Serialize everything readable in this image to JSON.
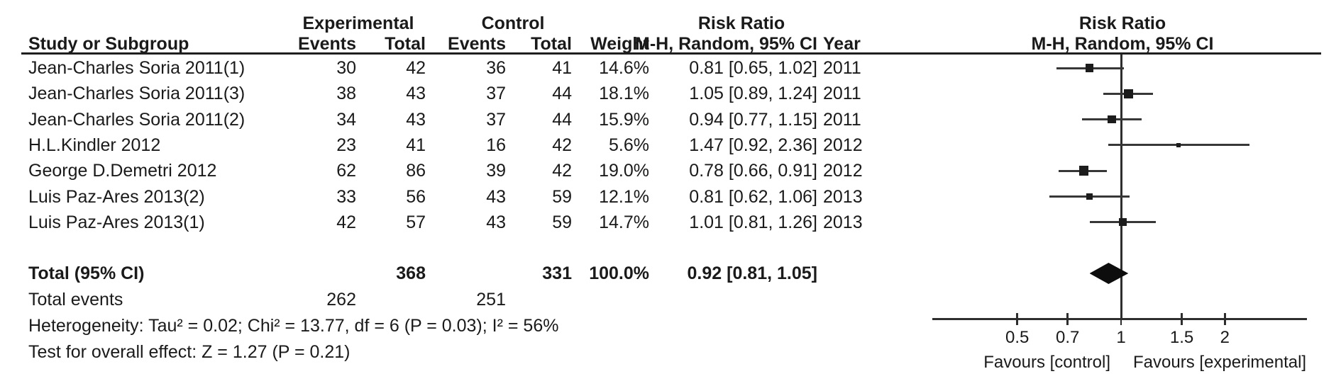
{
  "table": {
    "group_headers": {
      "experimental": "Experimental",
      "control": "Control",
      "risk_ratio_left": "Risk Ratio",
      "risk_ratio_right": "Risk Ratio"
    },
    "columns": {
      "study": "Study or Subgroup",
      "events": "Events",
      "total": "Total",
      "events2": "Events",
      "total2": "Total",
      "weight": "Weight",
      "mh_ci": "M-H, Random, 95% CI",
      "year": "Year",
      "mh_ci_plot": "M-H, Random, 95% CI"
    }
  },
  "chart_data": {
    "type": "forest",
    "effect_measure": "Risk Ratio",
    "method": "M-H, Random, 95% CI",
    "x_scale": "log",
    "x_ticks": [
      0.5,
      0.7,
      1,
      1.5,
      2
    ],
    "x_axis_labels": {
      "left": "Favours [control]",
      "right": "Favours [experimental]"
    },
    "studies": [
      {
        "name": "Jean-Charles Soria 2011(1)",
        "exp_events": "30",
        "exp_total": "42",
        "ctrl_events": "36",
        "ctrl_total": "41",
        "weight": "14.6%",
        "weight_value": 14.6,
        "rr": 0.81,
        "ci_low": 0.65,
        "ci_high": 1.02,
        "ci_text": "0.81 [0.65, 1.02]",
        "year": "2011"
      },
      {
        "name": "Jean-Charles Soria 2011(3)",
        "exp_events": "38",
        "exp_total": "43",
        "ctrl_events": "37",
        "ctrl_total": "44",
        "weight": "18.1%",
        "weight_value": 18.1,
        "rr": 1.05,
        "ci_low": 0.89,
        "ci_high": 1.24,
        "ci_text": "1.05 [0.89, 1.24]",
        "year": "2011"
      },
      {
        "name": "Jean-Charles Soria 2011(2)",
        "exp_events": "34",
        "exp_total": "43",
        "ctrl_events": "37",
        "ctrl_total": "44",
        "weight": "15.9%",
        "weight_value": 15.9,
        "rr": 0.94,
        "ci_low": 0.77,
        "ci_high": 1.15,
        "ci_text": "0.94 [0.77, 1.15]",
        "year": "2011"
      },
      {
        "name": "H.L.Kindler 2012",
        "exp_events": "23",
        "exp_total": "41",
        "ctrl_events": "16",
        "ctrl_total": "42",
        "weight": "5.6%",
        "weight_value": 5.6,
        "rr": 1.47,
        "ci_low": 0.92,
        "ci_high": 2.36,
        "ci_text": "1.47 [0.92, 2.36]",
        "year": "2012"
      },
      {
        "name": "George D.Demetri 2012",
        "exp_events": "62",
        "exp_total": "86",
        "ctrl_events": "39",
        "ctrl_total": "42",
        "weight": "19.0%",
        "weight_value": 19.0,
        "rr": 0.78,
        "ci_low": 0.66,
        "ci_high": 0.91,
        "ci_text": "0.78 [0.66, 0.91]",
        "year": "2012"
      },
      {
        "name": "Luis Paz-Ares 2013(2)",
        "exp_events": "33",
        "exp_total": "56",
        "ctrl_events": "43",
        "ctrl_total": "59",
        "weight": "12.1%",
        "weight_value": 12.1,
        "rr": 0.81,
        "ci_low": 0.62,
        "ci_high": 1.06,
        "ci_text": "0.81 [0.62, 1.06]",
        "year": "2013"
      },
      {
        "name": "Luis Paz-Ares 2013(1)",
        "exp_events": "42",
        "exp_total": "57",
        "ctrl_events": "43",
        "ctrl_total": "59",
        "weight": "14.7%",
        "weight_value": 14.7,
        "rr": 1.01,
        "ci_low": 0.81,
        "ci_high": 1.26,
        "ci_text": "1.01 [0.81, 1.26]",
        "year": "2013"
      }
    ],
    "total": {
      "label": "Total (95% CI)",
      "exp_total": "368",
      "ctrl_total": "331",
      "weight": "100.0%",
      "rr": 0.92,
      "ci_low": 0.81,
      "ci_high": 1.05,
      "ci_text": "0.92 [0.81, 1.05]"
    },
    "total_events": {
      "label": "Total events",
      "exp": "262",
      "ctrl": "251"
    },
    "heterogeneity": "Heterogeneity: Tau² = 0.02; Chi² = 13.77, df = 6 (P = 0.03); I² = 56%",
    "overall_effect": "Test for overall effect: Z = 1.27 (P = 0.21)",
    "marker_color": "#1c1c1c",
    "line_color": "#373737"
  }
}
